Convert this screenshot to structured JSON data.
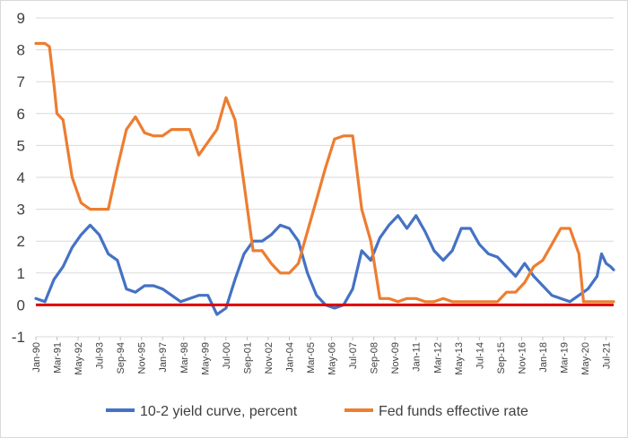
{
  "chart_data": {
    "type": "line",
    "title": "",
    "xlabel": "",
    "ylabel": "",
    "ylim": [
      -1,
      9
    ],
    "yticks": [
      -1,
      0,
      1,
      2,
      3,
      4,
      5,
      6,
      7,
      8,
      9
    ],
    "grid": true,
    "legend_position": "bottom",
    "x_start": "Jan-90",
    "x_end": "Dec-21",
    "xtick_labels": [
      "Jan-90",
      "Mar-91",
      "May-92",
      "Jul-93",
      "Sep-94",
      "Nov-95",
      "Jan-97",
      "Mar-98",
      "May-99",
      "Jul-00",
      "Sep-01",
      "Nov-02",
      "Jan-04",
      "Mar-05",
      "May-06",
      "Jul-07",
      "Sep-08",
      "Nov-09",
      "Jan-11",
      "Mar-12",
      "May-13",
      "Jul-14",
      "Sep-15",
      "Nov-16",
      "Jan-18",
      "Mar-19",
      "May-20",
      "Jul-21"
    ],
    "zero_line_color": "#e00000",
    "series": [
      {
        "name": "10-2 yield curve, percent",
        "color": "#4472c4",
        "points": [
          [
            "Jan-90",
            0.2
          ],
          [
            "Jul-90",
            0.1
          ],
          [
            "Jan-91",
            0.8
          ],
          [
            "Jul-91",
            1.2
          ],
          [
            "Jan-92",
            1.8
          ],
          [
            "Jul-92",
            2.2
          ],
          [
            "Jan-93",
            2.5
          ],
          [
            "Jul-93",
            2.2
          ],
          [
            "Jan-94",
            1.6
          ],
          [
            "Jul-94",
            1.4
          ],
          [
            "Jan-95",
            0.5
          ],
          [
            "Jul-95",
            0.4
          ],
          [
            "Jan-96",
            0.6
          ],
          [
            "Jul-96",
            0.6
          ],
          [
            "Jan-97",
            0.5
          ],
          [
            "Jul-97",
            0.3
          ],
          [
            "Jan-98",
            0.1
          ],
          [
            "Jul-98",
            0.2
          ],
          [
            "Jan-99",
            0.3
          ],
          [
            "Jul-99",
            0.3
          ],
          [
            "Jan-00",
            -0.3
          ],
          [
            "Jul-00",
            -0.1
          ],
          [
            "Jan-01",
            0.8
          ],
          [
            "Jul-01",
            1.6
          ],
          [
            "Jan-02",
            2.0
          ],
          [
            "Jul-02",
            2.0
          ],
          [
            "Jan-03",
            2.2
          ],
          [
            "Jul-03",
            2.5
          ],
          [
            "Jan-04",
            2.4
          ],
          [
            "Jul-04",
            2.0
          ],
          [
            "Jan-05",
            1.0
          ],
          [
            "Jul-05",
            0.3
          ],
          [
            "Jan-06",
            0.0
          ],
          [
            "Jul-06",
            -0.1
          ],
          [
            "Jan-07",
            0.0
          ],
          [
            "Jul-07",
            0.5
          ],
          [
            "Jan-08",
            1.7
          ],
          [
            "Jul-08",
            1.4
          ],
          [
            "Jan-09",
            2.1
          ],
          [
            "Jul-09",
            2.5
          ],
          [
            "Jan-10",
            2.8
          ],
          [
            "Jul-10",
            2.4
          ],
          [
            "Jan-11",
            2.8
          ],
          [
            "Jul-11",
            2.3
          ],
          [
            "Jan-12",
            1.7
          ],
          [
            "Jul-12",
            1.4
          ],
          [
            "Jan-13",
            1.7
          ],
          [
            "Jul-13",
            2.4
          ],
          [
            "Jan-14",
            2.4
          ],
          [
            "Jul-14",
            1.9
          ],
          [
            "Jan-15",
            1.6
          ],
          [
            "Jul-15",
            1.5
          ],
          [
            "Jan-16",
            1.2
          ],
          [
            "Jul-16",
            0.9
          ],
          [
            "Jan-17",
            1.3
          ],
          [
            "Jul-17",
            0.9
          ],
          [
            "Jan-18",
            0.6
          ],
          [
            "Jul-18",
            0.3
          ],
          [
            "Jan-19",
            0.2
          ],
          [
            "Jul-19",
            0.1
          ],
          [
            "Jan-20",
            0.3
          ],
          [
            "Jul-20",
            0.5
          ],
          [
            "Jan-21",
            0.9
          ],
          [
            "Apr-21",
            1.6
          ],
          [
            "Jul-21",
            1.3
          ],
          [
            "Oct-21",
            1.2
          ],
          [
            "Dec-21",
            1.1
          ]
        ]
      },
      {
        "name": "Fed funds effective rate",
        "color": "#ed7d31",
        "points": [
          [
            "Jan-90",
            8.2
          ],
          [
            "Jul-90",
            8.2
          ],
          [
            "Oct-90",
            8.1
          ],
          [
            "Jan-91",
            6.9
          ],
          [
            "Mar-91",
            6.0
          ],
          [
            "Jul-91",
            5.8
          ],
          [
            "Jan-92",
            4.0
          ],
          [
            "Jul-92",
            3.2
          ],
          [
            "Jan-93",
            3.0
          ],
          [
            "Jul-93",
            3.0
          ],
          [
            "Jan-94",
            3.0
          ],
          [
            "Jul-94",
            4.3
          ],
          [
            "Jan-95",
            5.5
          ],
          [
            "Jul-95",
            5.9
          ],
          [
            "Jan-96",
            5.4
          ],
          [
            "Jul-96",
            5.3
          ],
          [
            "Jan-97",
            5.3
          ],
          [
            "Jul-97",
            5.5
          ],
          [
            "Jan-98",
            5.5
          ],
          [
            "Jul-98",
            5.5
          ],
          [
            "Jan-99",
            4.7
          ],
          [
            "Jul-99",
            5.1
          ],
          [
            "Jan-00",
            5.5
          ],
          [
            "Jul-00",
            6.5
          ],
          [
            "Jan-01",
            5.8
          ],
          [
            "Jul-01",
            3.8
          ],
          [
            "Jan-02",
            1.7
          ],
          [
            "Jul-02",
            1.7
          ],
          [
            "Jan-03",
            1.3
          ],
          [
            "Jul-03",
            1.0
          ],
          [
            "Jan-04",
            1.0
          ],
          [
            "Jul-04",
            1.3
          ],
          [
            "Jan-05",
            2.3
          ],
          [
            "Jul-05",
            3.3
          ],
          [
            "Jan-06",
            4.3
          ],
          [
            "Jul-06",
            5.2
          ],
          [
            "Jan-07",
            5.3
          ],
          [
            "Jul-07",
            5.3
          ],
          [
            "Jan-08",
            3.0
          ],
          [
            "Jul-08",
            2.0
          ],
          [
            "Jan-09",
            0.2
          ],
          [
            "Jul-09",
            0.2
          ],
          [
            "Jan-10",
            0.1
          ],
          [
            "Jul-10",
            0.2
          ],
          [
            "Jan-11",
            0.2
          ],
          [
            "Jul-11",
            0.1
          ],
          [
            "Jan-12",
            0.1
          ],
          [
            "Jul-12",
            0.2
          ],
          [
            "Jan-13",
            0.1
          ],
          [
            "Jul-13",
            0.1
          ],
          [
            "Jan-14",
            0.1
          ],
          [
            "Jul-14",
            0.1
          ],
          [
            "Jan-15",
            0.1
          ],
          [
            "Jul-15",
            0.1
          ],
          [
            "Jan-16",
            0.4
          ],
          [
            "Jul-16",
            0.4
          ],
          [
            "Jan-17",
            0.7
          ],
          [
            "Jul-17",
            1.2
          ],
          [
            "Jan-18",
            1.4
          ],
          [
            "Jul-18",
            1.9
          ],
          [
            "Jan-19",
            2.4
          ],
          [
            "Jul-19",
            2.4
          ],
          [
            "Jan-20",
            1.6
          ],
          [
            "Apr-20",
            0.1
          ],
          [
            "Jul-20",
            0.1
          ],
          [
            "Jan-21",
            0.1
          ],
          [
            "Jul-21",
            0.1
          ],
          [
            "Dec-21",
            0.1
          ]
        ]
      }
    ]
  }
}
